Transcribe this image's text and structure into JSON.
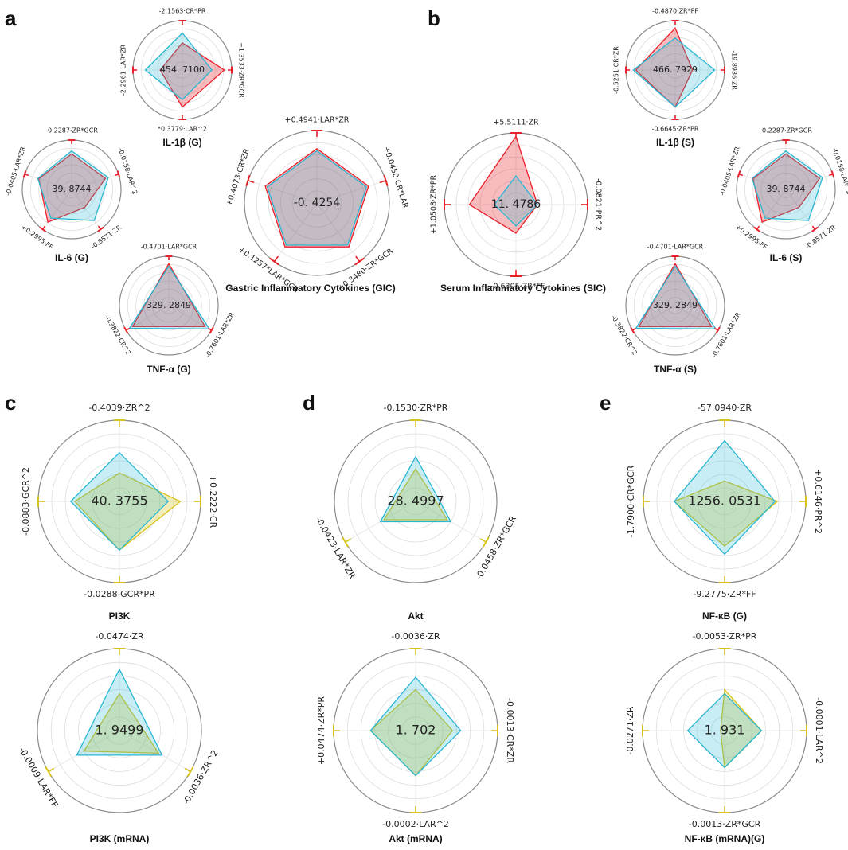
{
  "panels": [
    "a",
    "b",
    "c",
    "d",
    "e"
  ],
  "colors": {
    "red": "#e8202a",
    "cyan": "#29b6d2",
    "yellow": "#d8c21a",
    "grey": "#8a8a8a",
    "overlap": "#9c8d9e"
  },
  "chart_data": [
    {
      "type": "radar",
      "id": "il1b-g",
      "title": "IL-1β (G)",
      "center_value": "454. 7100",
      "axes": [
        "-2.1563·CR*PR",
        "+1.3533·ZR*GCR",
        "*0.3779·LAR^2",
        "-2.2961·LAR*ZR"
      ],
      "series": [
        {
          "name": "predicted",
          "color": "red",
          "values": [
            0.55,
            0.85,
            0.75,
            0.45
          ]
        },
        {
          "name": "observed",
          "color": "cyan",
          "values": [
            0.75,
            0.6,
            0.6,
            0.75
          ]
        }
      ]
    },
    {
      "type": "radar",
      "id": "il6-g",
      "title": "IL-6 (G)",
      "center_value": "39. 8744",
      "axes": [
        "-0.2287·ZR*GCR",
        "-0.0158·LAR^2",
        "-0.8571·ZR",
        "+0.2995·FF",
        "-0.0405·LAR*ZR"
      ],
      "series": [
        {
          "name": "predicted",
          "color": "red",
          "values": [
            0.72,
            0.72,
            0.45,
            0.82,
            0.7
          ]
        },
        {
          "name": "observed",
          "color": "cyan",
          "values": [
            0.78,
            0.78,
            0.78,
            0.72,
            0.72
          ]
        }
      ]
    },
    {
      "type": "radar",
      "id": "tnfa-g",
      "title": "TNF-α (G)",
      "center_value": "329. 2849",
      "axes": [
        "-0.4701·LAR*GCR",
        "-0.7601·LAR*ZR",
        "-0.3822·CR^2"
      ],
      "series": [
        {
          "name": "predicted",
          "color": "red",
          "values": [
            0.85,
            0.85,
            0.85
          ]
        },
        {
          "name": "observed",
          "color": "cyan",
          "values": [
            0.8,
            0.95,
            0.92
          ]
        }
      ]
    },
    {
      "type": "radar",
      "id": "gic",
      "title": "Gastric Inflammatory Cytokines (GIC)",
      "center_value": "-0. 4254",
      "axes": [
        "+0.4941·LAR*ZR",
        "+0.0450·CR*LAR",
        "+0.3480·ZR*GCR",
        "+0.1257*LAR*GCR",
        "+0.4073·CR*ZR"
      ],
      "series": [
        {
          "name": "predicted",
          "color": "red",
          "values": [
            0.75,
            0.75,
            0.75,
            0.75,
            0.75
          ]
        },
        {
          "name": "observed",
          "color": "cyan",
          "values": [
            0.72,
            0.72,
            0.72,
            0.72,
            0.72
          ]
        }
      ]
    },
    {
      "type": "radar",
      "id": "il1b-s",
      "title": "IL-1β (S)",
      "center_value": "466. 7929",
      "axes": [
        "-0.4870·ZR*FF",
        "-19.8936·ZR",
        "-0.6645·ZR*PR",
        "-0.5251·CR*ZR"
      ],
      "series": [
        {
          "name": "predicted",
          "color": "red",
          "values": [
            0.85,
            0.35,
            0.75,
            0.8
          ]
        },
        {
          "name": "observed",
          "color": "cyan",
          "values": [
            0.65,
            0.8,
            0.75,
            0.85
          ]
        }
      ]
    },
    {
      "type": "radar",
      "id": "il6-s",
      "title": "IL-6 (S)",
      "center_value": "39. 8744",
      "axes": [
        "-0.2287·ZR*GCR",
        "-0.0158·LAR^2",
        "-0.8571·ZR",
        "+0.2995·FF",
        "-0.0405·LAR*ZR"
      ],
      "series": [
        {
          "name": "predicted",
          "color": "red",
          "values": [
            0.72,
            0.72,
            0.45,
            0.82,
            0.7
          ]
        },
        {
          "name": "observed",
          "color": "cyan",
          "values": [
            0.78,
            0.78,
            0.78,
            0.72,
            0.72
          ]
        }
      ]
    },
    {
      "type": "radar",
      "id": "sic",
      "title": "Serum Inflammatory Cytokines (SIC)",
      "center_value": "11. 4786",
      "axes": [
        "+5.5111·ZR",
        "-0.0821·PR^2",
        "+0.6305·ZR*FF",
        "+1.0508·ZR*PR"
      ],
      "series": [
        {
          "name": "predicted",
          "color": "red",
          "values": [
            0.95,
            0.3,
            0.4,
            0.65
          ]
        },
        {
          "name": "observed",
          "color": "cyan",
          "values": [
            0.4,
            0.3,
            0.3,
            0.3
          ]
        }
      ]
    },
    {
      "type": "radar",
      "id": "tnfa-s",
      "title": "TNF-α (S)",
      "center_value": "329. 2849",
      "axes": [
        "-0.4701·LAR*GCR",
        "-0.7601·LAR*ZR",
        "-0.3822·CR^2"
      ],
      "series": [
        {
          "name": "predicted",
          "color": "red",
          "values": [
            0.85,
            0.85,
            0.85
          ]
        },
        {
          "name": "observed",
          "color": "cyan",
          "values": [
            0.8,
            0.95,
            0.92
          ]
        }
      ]
    },
    {
      "type": "radar",
      "id": "pi3k",
      "title": "PI3K",
      "center_value": "40. 3755",
      "axes": [
        "-0.4039·ZR^2",
        "+0.2222·CR",
        "-0.0288·GCR*PR",
        "-0.0883·GCR^2"
      ],
      "series": [
        {
          "name": "predicted",
          "color": "yellow",
          "values": [
            0.35,
            0.75,
            0.6,
            0.55
          ]
        },
        {
          "name": "observed",
          "color": "cyan",
          "values": [
            0.6,
            0.6,
            0.6,
            0.6
          ]
        }
      ]
    },
    {
      "type": "radar",
      "id": "akt",
      "title": "Akt",
      "center_value": "28. 4997",
      "axes": [
        "-0.1530·ZR*PR",
        "-0.0458·ZR*GCR",
        "-0.0423·LAR*ZR"
      ],
      "series": [
        {
          "name": "predicted",
          "color": "yellow",
          "values": [
            0.4,
            0.45,
            0.45
          ]
        },
        {
          "name": "observed",
          "color": "cyan",
          "values": [
            0.55,
            0.5,
            0.5
          ]
        }
      ]
    },
    {
      "type": "radar",
      "id": "nfkb-g",
      "title": "NF-κB (G)",
      "center_value": "1256. 0531",
      "axes": [
        "-57.0940·ZR",
        "+0.6146·PR^2",
        "-9.2775·ZR*FF",
        "-1.7900·CR*GCR"
      ],
      "series": [
        {
          "name": "predicted",
          "color": "yellow",
          "values": [
            0.25,
            0.65,
            0.55,
            0.62
          ]
        },
        {
          "name": "observed",
          "color": "cyan",
          "values": [
            0.75,
            0.62,
            0.65,
            0.62
          ]
        }
      ]
    },
    {
      "type": "radar",
      "id": "pi3k-mrna",
      "title": "PI3K (mRNA)",
      "center_value": "1. 9499",
      "axes": [
        "-0.0474·ZR",
        "-0.0036·ZR^2",
        "-0.0009·LAR*FF"
      ],
      "series": [
        {
          "name": "predicted",
          "color": "yellow",
          "values": [
            0.45,
            0.55,
            0.5
          ]
        },
        {
          "name": "observed",
          "color": "cyan",
          "values": [
            0.75,
            0.6,
            0.6
          ]
        }
      ]
    },
    {
      "type": "radar",
      "id": "akt-mrna",
      "title": "Akt (mRNA)",
      "center_value": "1. 702",
      "axes": [
        "-0.0036·ZR",
        "-0.0013·CR*ZR",
        "-0.0002·LAR^2",
        "+0.0474·ZR*PR"
      ],
      "series": [
        {
          "name": "predicted",
          "color": "yellow",
          "values": [
            0.5,
            0.45,
            0.55,
            0.55
          ]
        },
        {
          "name": "observed",
          "color": "cyan",
          "values": [
            0.65,
            0.55,
            0.55,
            0.55
          ]
        }
      ]
    },
    {
      "type": "radar",
      "id": "nfkb-mrna",
      "title": "NF-κB (mRNA)(G)",
      "center_value": "1. 931",
      "axes": [
        "-0.0053·ZR*PR",
        "-0.0001·LAR^2",
        "-0.0013·ZR*GCR",
        "-0.0271·ZR"
      ],
      "series": [
        {
          "name": "predicted",
          "color": "yellow",
          "values": [
            0.5,
            0.45,
            0.45,
            0.05
          ]
        },
        {
          "name": "observed",
          "color": "cyan",
          "values": [
            0.45,
            0.45,
            0.45,
            0.45
          ]
        }
      ]
    }
  ]
}
